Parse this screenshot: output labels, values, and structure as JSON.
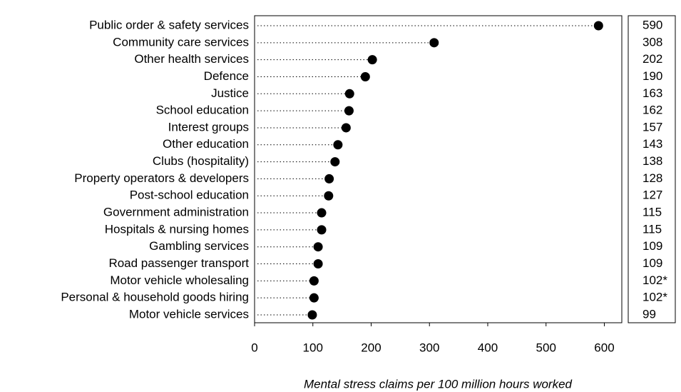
{
  "chart_data": {
    "type": "dot",
    "categories": [
      "Public order & safety services",
      "Community care services",
      "Other health services",
      "Defence",
      "Justice",
      "School education",
      "Interest groups",
      "Other education",
      "Clubs (hospitality)",
      "Property operators & developers",
      "Post-school education",
      "Government administration",
      "Hospitals & nursing homes",
      "Gambling services",
      "Road passenger transport",
      "Motor vehicle wholesaling",
      "Personal & household goods hiring",
      "Motor vehicle services"
    ],
    "values": [
      590,
      308,
      202,
      190,
      163,
      162,
      157,
      143,
      138,
      128,
      127,
      115,
      115,
      109,
      109,
      102,
      102,
      99
    ],
    "value_labels": [
      "590",
      "308",
      "202",
      "190",
      "163",
      "162",
      "157",
      "143",
      "138",
      "128",
      "127",
      "115",
      "115",
      "109",
      "109",
      "102*",
      "102*",
      "99"
    ],
    "color": "#000000",
    "xlabel": "Mental stress claims per 100 million hours worked",
    "xlim": [
      0,
      630
    ],
    "xticks": [
      0,
      100,
      200,
      300,
      400,
      500,
      600
    ]
  }
}
